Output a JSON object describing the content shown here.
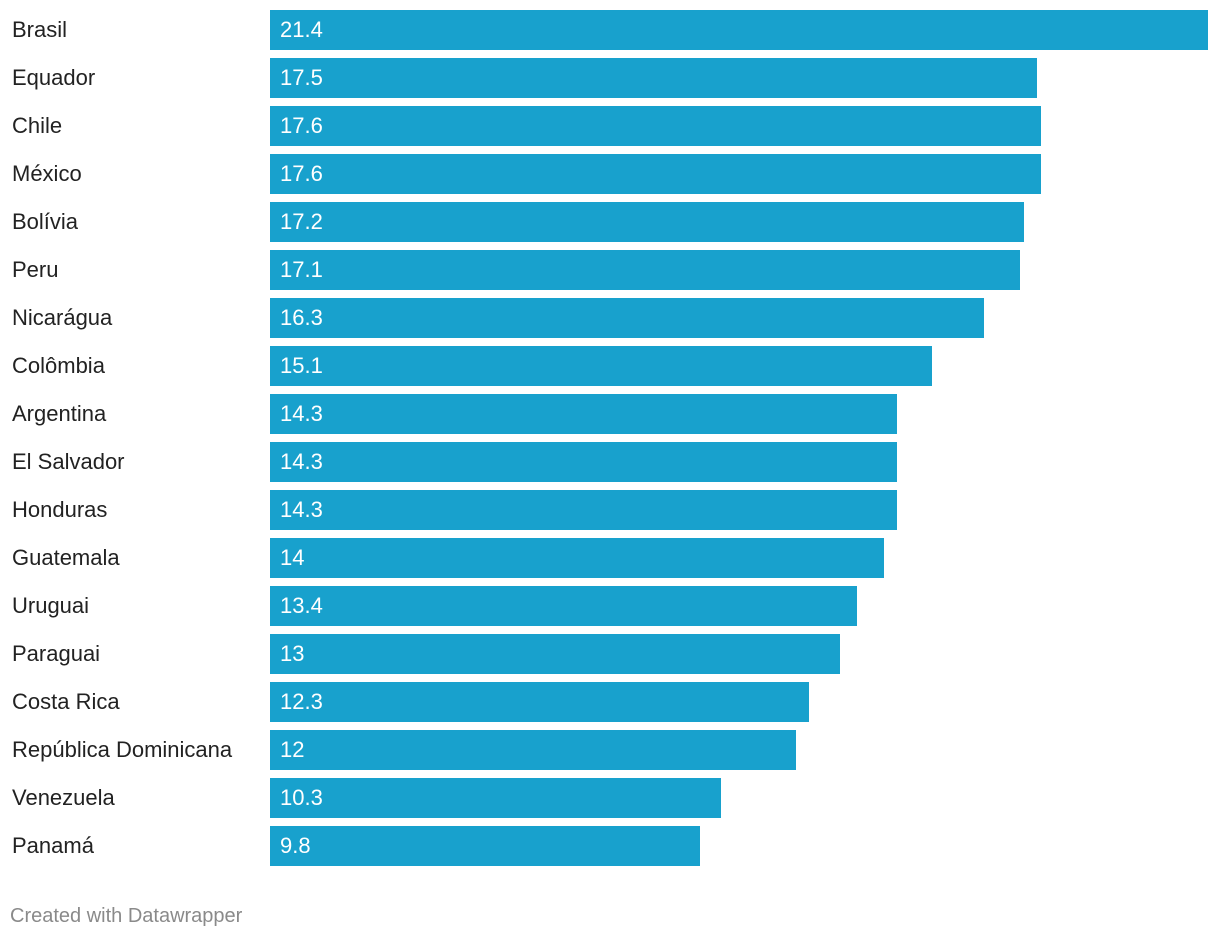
{
  "chart_data": {
    "type": "bar",
    "orientation": "horizontal",
    "categories": [
      "Brasil",
      "Equador",
      "Chile",
      "México",
      "Bolívia",
      "Peru",
      "Nicarágua",
      "Colômbia",
      "Argentina",
      "El Salvador",
      "Honduras",
      "Guatemala",
      "Uruguai",
      "Paraguai",
      "Costa Rica",
      "República Dominicana",
      "Venezuela",
      "Panamá"
    ],
    "values": [
      21.4,
      17.5,
      17.6,
      17.6,
      17.2,
      17.1,
      16.3,
      15.1,
      14.3,
      14.3,
      14.3,
      14,
      13.4,
      13,
      12.3,
      12,
      10.3,
      9.8
    ],
    "title": "",
    "xlabel": "",
    "ylabel": "",
    "xlim": [
      0,
      21.4
    ],
    "grid": false,
    "data_labels": true,
    "bar_color": "#18a1cd"
  },
  "footer": {
    "credit": "Created with Datawrapper"
  }
}
